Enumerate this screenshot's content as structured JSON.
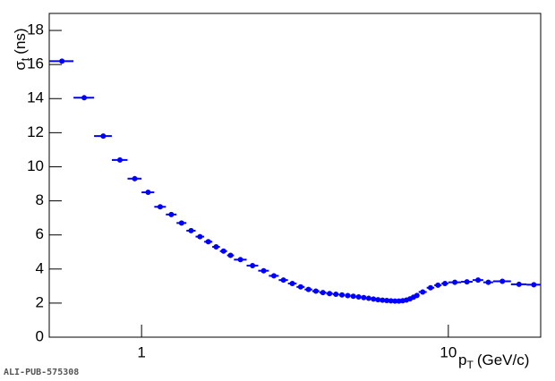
{
  "chart_data": {
    "type": "scatter",
    "ylabel": [
      "σ",
      "t",
      "(ns)"
    ],
    "xlabel": [
      "p",
      "T",
      "(GeV/c)"
    ],
    "watermark": "ALI-PUB-575308",
    "xscale": "log",
    "xlim": [
      0.5,
      20
    ],
    "ylim": [
      0,
      19
    ],
    "xticks": [
      1,
      10
    ],
    "yticks": [
      0,
      2,
      4,
      6,
      8,
      10,
      12,
      14,
      16,
      18
    ],
    "series": [
      {
        "color": "#0000ff",
        "x": [
          0.55,
          0.65,
          0.75,
          0.85,
          0.95,
          1.05,
          1.15,
          1.25,
          1.35,
          1.45,
          1.55,
          1.65,
          1.75,
          1.85,
          1.95,
          2.1,
          2.3,
          2.5,
          2.7,
          2.9,
          3.1,
          3.3,
          3.5,
          3.7,
          3.9,
          4.1,
          4.3,
          4.5,
          4.7,
          4.9,
          5.1,
          5.3,
          5.5,
          5.7,
          5.9,
          6.1,
          6.3,
          6.5,
          6.7,
          6.9,
          7.1,
          7.3,
          7.5,
          7.7,
          7.9,
          8.25,
          8.75,
          9.25,
          9.75,
          10.5,
          11.5,
          12.5,
          13.5,
          15,
          17,
          19
        ],
        "xerr": [
          0.05,
          0.05,
          0.05,
          0.05,
          0.05,
          0.05,
          0.05,
          0.05,
          0.05,
          0.05,
          0.05,
          0.05,
          0.05,
          0.05,
          0.05,
          0.1,
          0.1,
          0.1,
          0.1,
          0.1,
          0.1,
          0.1,
          0.1,
          0.1,
          0.1,
          0.1,
          0.1,
          0.1,
          0.1,
          0.1,
          0.1,
          0.1,
          0.1,
          0.1,
          0.1,
          0.1,
          0.1,
          0.1,
          0.1,
          0.1,
          0.1,
          0.1,
          0.1,
          0.1,
          0.1,
          0.25,
          0.25,
          0.25,
          0.25,
          0.5,
          0.5,
          0.5,
          0.5,
          1,
          1,
          1
        ],
        "values": [
          16.2,
          14.05,
          11.8,
          10.4,
          9.3,
          8.5,
          7.65,
          7.2,
          6.7,
          6.25,
          5.9,
          5.6,
          5.3,
          5.05,
          4.8,
          4.55,
          4.2,
          3.9,
          3.6,
          3.35,
          3.15,
          2.95,
          2.8,
          2.7,
          2.62,
          2.56,
          2.52,
          2.48,
          2.44,
          2.4,
          2.36,
          2.32,
          2.28,
          2.24,
          2.2,
          2.17,
          2.15,
          2.13,
          2.12,
          2.12,
          2.14,
          2.18,
          2.25,
          2.35,
          2.45,
          2.65,
          2.9,
          3.05,
          3.15,
          3.22,
          3.25,
          3.35,
          3.22,
          3.28,
          3.1,
          3.08
        ]
      }
    ]
  }
}
